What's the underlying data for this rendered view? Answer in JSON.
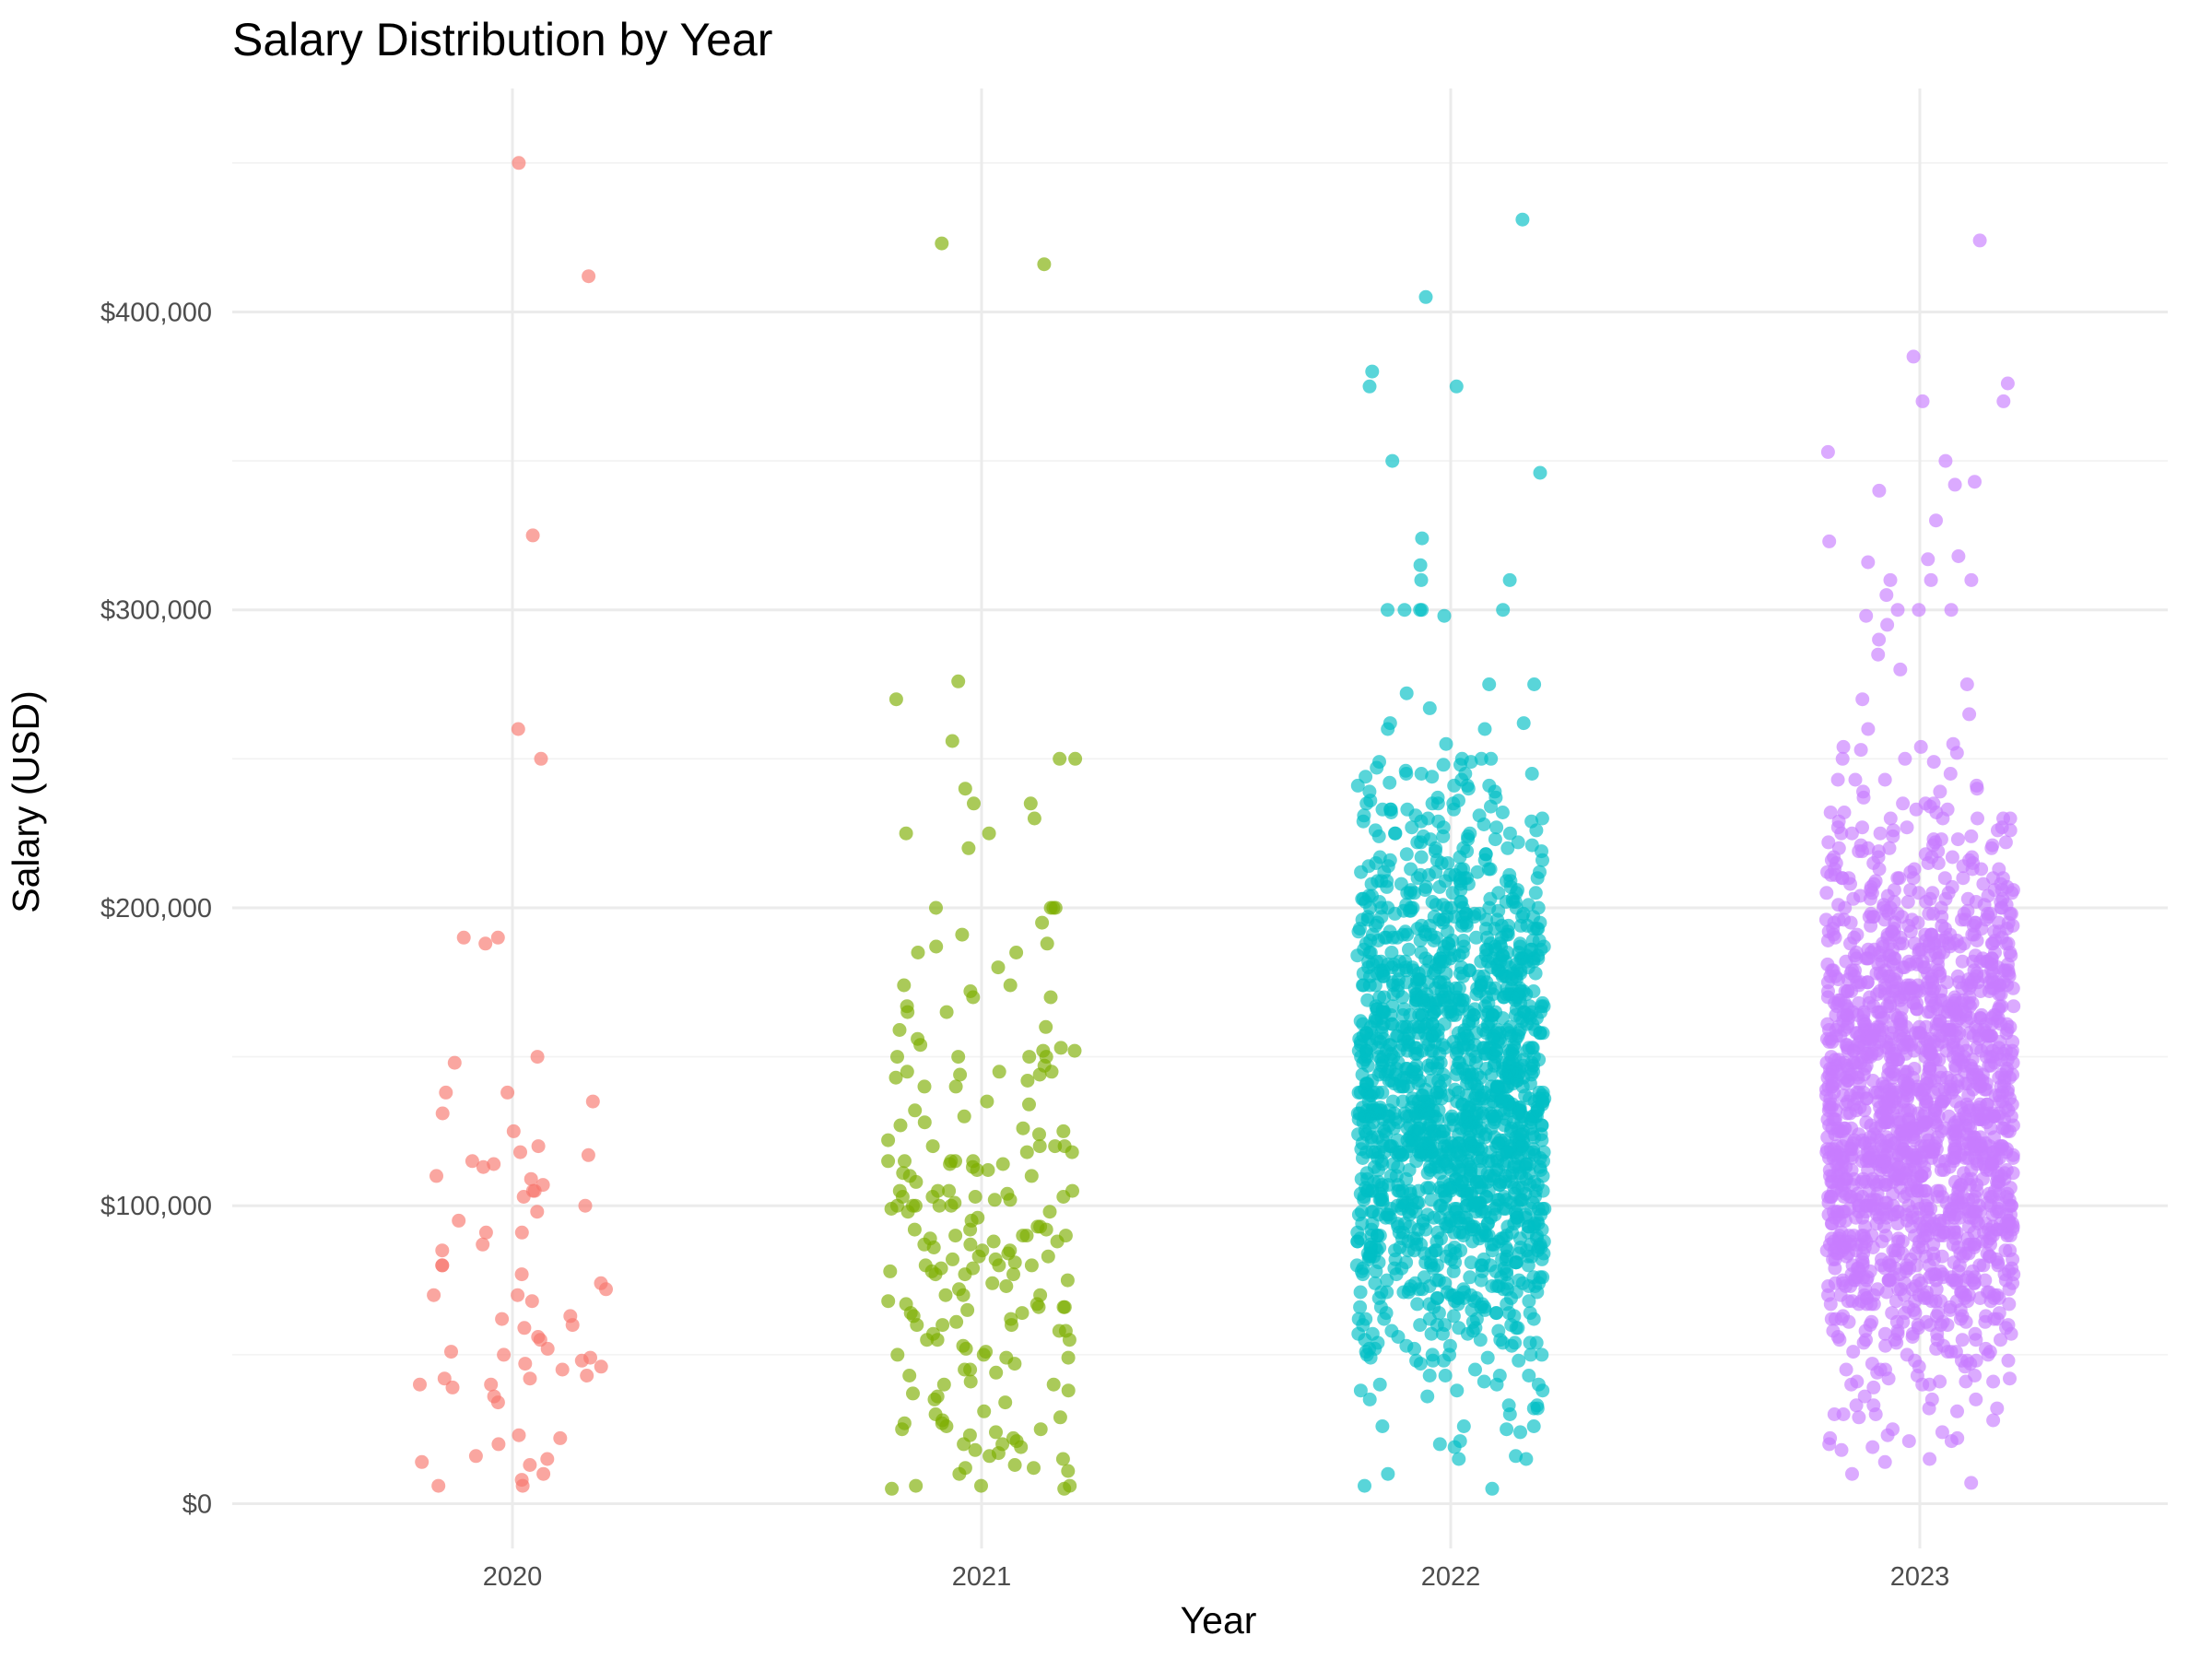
{
  "chart_data": {
    "type": "scatter",
    "title": "Salary Distribution by Year",
    "xlabel": "Year",
    "ylabel": "Salary (USD)",
    "categories": [
      "2020",
      "2021",
      "2022",
      "2023"
    ],
    "y_ticks": [
      0,
      100000,
      200000,
      300000,
      400000
    ],
    "y_tick_labels": [
      "$0",
      "$100,000",
      "$200,000",
      "$300,000",
      "$400,000"
    ],
    "ylim": [
      -15000,
      475000
    ],
    "grid": true,
    "legend": "none",
    "jitter": "horizontal, +/-0.2 of category width",
    "series": [
      {
        "category": "2020",
        "color": "#F8766D",
        "point_count": 75,
        "values": [
          450000,
          412000,
          325000,
          260000,
          250000,
          190000,
          190000,
          188000,
          150000,
          148000,
          138000,
          138000,
          135000,
          131000,
          125000,
          120000,
          118000,
          117000,
          115000,
          114000,
          113000,
          110000,
          109000,
          107000,
          105000,
          105000,
          103000,
          100000,
          98000,
          95000,
          91000,
          91000,
          87000,
          85000,
          80000,
          80000,
          77000,
          74000,
          72000,
          70000,
          70000,
          68000,
          63000,
          62000,
          60000,
          59000,
          56000,
          55000,
          52000,
          51000,
          50000,
          49000,
          48000,
          47000,
          46000,
          45000,
          43000,
          42000,
          42000,
          40000,
          40000,
          39000,
          36000,
          34000,
          23000,
          22000,
          20000,
          16000,
          15000,
          14000,
          13000,
          10000,
          8000,
          6000,
          6000
        ]
      },
      {
        "category": "2021",
        "color": "#7CAE00",
        "point_count": 217,
        "values": [
          423000,
          416000,
          276000,
          270000,
          256000,
          250000,
          250000,
          240000,
          235000,
          235000,
          230000,
          225000,
          225000,
          220000,
          200000,
          200000,
          200000,
          200000,
          195000,
          187000,
          185000,
          180000,
          174000,
          174000,
          170000,
          170000,
          167000,
          165000,
          165000,
          160000,
          153000,
          152000,
          150000,
          150000,
          150000,
          150000,
          145000,
          143000,
          140000,
          140000,
          135000,
          130000,
          128000,
          125000,
          120000,
          120000,
          118000,
          115000,
          115000,
          115000,
          112000,
          111000,
          110000,
          110000,
          105000,
          103000,
          103000,
          100000,
          100000,
          100000,
          98000,
          96000,
          95000,
          93000,
          92000,
          90000,
          90000,
          90000,
          89000,
          88000,
          85000,
          83000,
          82000,
          80000,
          80000,
          80000,
          78000,
          77000,
          75000,
          74000,
          73000,
          72000,
          70000,
          70000,
          68000,
          66000,
          65000,
          64000,
          63000,
          62000,
          60000,
          58000,
          57000,
          55000,
          55000,
          53000,
          52000,
          50000,
          50000,
          49000,
          47000,
          45000,
          43000,
          40000,
          40000,
          38000,
          36000,
          34000,
          30000,
          29000,
          28000,
          27000,
          26000,
          25000,
          25000,
          24000,
          23000,
          22000,
          21000,
          20000,
          20000,
          19000,
          18000,
          17000,
          16000,
          15000,
          13000,
          12000,
          12000,
          11000,
          10000,
          6000,
          6000,
          6000
        ]
      },
      {
        "category": "2022",
        "color": "#00BFC4",
        "point_count": 1664,
        "values": [
          431000,
          405000,
          380000,
          375000,
          375000,
          350000,
          346000,
          324000,
          315000,
          310000,
          310000,
          300000,
          300000,
          300000,
          300000,
          300000,
          298000,
          275000,
          275000,
          272000,
          267000,
          260000,
          260000,
          255000,
          250000,
          250000,
          250000,
          245000,
          240000,
          235000,
          230000,
          225000,
          220000,
          215000,
          210000,
          205000,
          200000,
          200000,
          195000,
          190000,
          185000,
          180000,
          175000,
          170000,
          165000,
          160000,
          155000,
          150000,
          150000,
          145000,
          140000,
          140000,
          135000,
          130000,
          130000,
          125000,
          120000,
          120000,
          115000,
          110000,
          110000,
          105000,
          100000,
          100000,
          95000,
          90000,
          90000,
          85000,
          80000,
          75000,
          70000,
          65000,
          60000,
          55000,
          50000,
          45000,
          40000,
          35000,
          30000,
          25000,
          20000,
          15000,
          10000,
          6000
        ]
      },
      {
        "category": "2023",
        "color": "#C77CFF",
        "point_count": 1785,
        "values": [
          424000,
          385000,
          376000,
          370000,
          370000,
          353000,
          350000,
          343000,
          342000,
          340000,
          330000,
          323000,
          318000,
          317000,
          316000,
          310000,
          310000,
          310000,
          305000,
          300000,
          300000,
          300000,
          298000,
          295000,
          290000,
          285000,
          280000,
          275000,
          270000,
          265000,
          260000,
          255000,
          250000,
          250000,
          245000,
          240000,
          235000,
          230000,
          225000,
          220000,
          215000,
          210000,
          205000,
          200000,
          200000,
          195000,
          190000,
          185000,
          180000,
          175000,
          170000,
          165000,
          160000,
          155000,
          150000,
          150000,
          145000,
          140000,
          140000,
          135000,
          130000,
          130000,
          125000,
          120000,
          120000,
          115000,
          110000,
          110000,
          105000,
          100000,
          100000,
          95000,
          90000,
          85000,
          80000,
          75000,
          70000,
          65000,
          60000,
          55000,
          50000,
          45000,
          40000,
          35000,
          30000,
          25000,
          20000,
          15000,
          10000,
          7000
        ]
      }
    ]
  }
}
